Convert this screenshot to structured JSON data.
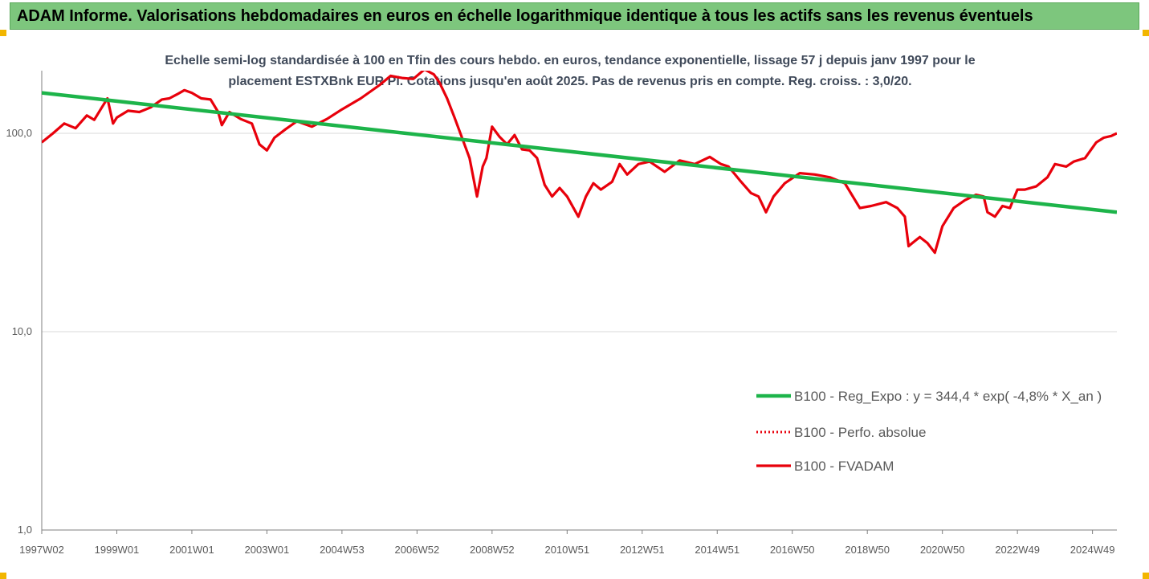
{
  "banner": {
    "title": "ADAM Informe. Valorisations hebdomadaires en euros en échelle logarithmique identique à tous les actifs sans les revenus éventuels"
  },
  "colors": {
    "banner_bg": "#7dc67d",
    "trend": "#1db44a",
    "series": "#e8000b",
    "corner": "#f2b600",
    "axis_text": "#5a5a5a",
    "grid": "#d9d9d9"
  },
  "chart_data": {
    "type": "line",
    "title_line1": "Echelle semi-log standardisée à 100 en Tfin des cours hebdo. en euros, tendance exponentielle, lissage 57 j depuis janv 1997 pour le",
    "title_line2": "placement ESTXBnk EUR Pi. Cotations jusqu'en août 2025. Pas de revenus pris en compte. Reg. croiss. : 3,0/20.",
    "y_scale": "log",
    "ylim": [
      1,
      200
    ],
    "y_ticks": [
      {
        "value": 1,
        "label": "1,0"
      },
      {
        "value": 10,
        "label": "10,0"
      },
      {
        "value": 100,
        "label": "100,0"
      }
    ],
    "xlim": [
      1997.0,
      2025.65
    ],
    "x_ticks": [
      {
        "value": 1997.0,
        "label": "1997W02"
      },
      {
        "value": 1999.0,
        "label": "1999W01"
      },
      {
        "value": 2001.0,
        "label": "2001W01"
      },
      {
        "value": 2003.0,
        "label": "2003W01"
      },
      {
        "value": 2005.0,
        "label": "2004W53"
      },
      {
        "value": 2007.0,
        "label": "2006W52"
      },
      {
        "value": 2009.0,
        "label": "2008W52"
      },
      {
        "value": 2011.0,
        "label": "2010W51"
      },
      {
        "value": 2013.0,
        "label": "2012W51"
      },
      {
        "value": 2015.0,
        "label": "2014W51"
      },
      {
        "value": 2017.0,
        "label": "2016W50"
      },
      {
        "value": 2019.0,
        "label": "2018W50"
      },
      {
        "value": 2021.0,
        "label": "2020W50"
      },
      {
        "value": 2023.0,
        "label": "2022W49"
      },
      {
        "value": 2025.0,
        "label": "2024W49"
      }
    ],
    "legend_position": "right-bottom",
    "series": [
      {
        "name": "B100 - Reg_Expo : y = 344,4 * exp( -4,8% *  X_an )",
        "style": "solid-thick",
        "color": "#1db44a",
        "x": [
          1997.0,
          2025.65
        ],
        "y": [
          160,
          40
        ]
      },
      {
        "name": "B100 - Perfo. absolue",
        "style": "dotted",
        "color": "#e8000b",
        "x": [],
        "y": []
      },
      {
        "name": "B100 - FVADAM",
        "style": "solid",
        "color": "#e8000b",
        "x": [
          1997.0,
          1997.3,
          1997.6,
          1997.9,
          1998.2,
          1998.4,
          1998.6,
          1998.75,
          1998.9,
          1999.0,
          1999.3,
          1999.6,
          1999.9,
          2000.2,
          2000.4,
          2000.6,
          2000.8,
          2001.0,
          2001.25,
          2001.5,
          2001.7,
          2001.8,
          2002.0,
          2002.3,
          2002.6,
          2002.8,
          2003.0,
          2003.2,
          2003.5,
          2003.8,
          2004.2,
          2004.6,
          2005.0,
          2005.5,
          2006.0,
          2006.3,
          2006.6,
          2006.9,
          2007.2,
          2007.45,
          2007.6,
          2007.8,
          2008.0,
          2008.2,
          2008.4,
          2008.6,
          2008.75,
          2008.85,
          2009.0,
          2009.2,
          2009.4,
          2009.6,
          2009.8,
          2010.0,
          2010.2,
          2010.4,
          2010.6,
          2010.8,
          2011.0,
          2011.3,
          2011.5,
          2011.7,
          2011.9,
          2012.2,
          2012.4,
          2012.6,
          2012.9,
          2013.2,
          2013.6,
          2014.0,
          2014.4,
          2014.8,
          2015.1,
          2015.3,
          2015.6,
          2015.9,
          2016.1,
          2016.3,
          2016.5,
          2016.8,
          2017.2,
          2017.6,
          2018.0,
          2018.4,
          2018.8,
          2019.1,
          2019.5,
          2019.8,
          2020.0,
          2020.1,
          2020.2,
          2020.4,
          2020.6,
          2020.8,
          2021.0,
          2021.3,
          2021.6,
          2021.9,
          2022.1,
          2022.2,
          2022.4,
          2022.6,
          2022.8,
          2023.0,
          2023.2,
          2023.5,
          2023.8,
          2024.0,
          2024.3,
          2024.5,
          2024.8,
          2025.1,
          2025.3,
          2025.5,
          2025.65
        ],
        "y": [
          90,
          100,
          112,
          106,
          123,
          117,
          135,
          150,
          112,
          120,
          130,
          128,
          135,
          148,
          150,
          157,
          165,
          160,
          150,
          148,
          128,
          110,
          128,
          118,
          112,
          88,
          82,
          95,
          105,
          115,
          108,
          118,
          132,
          150,
          175,
          195,
          190,
          188,
          210,
          198,
          180,
          150,
          120,
          95,
          75,
          48,
          68,
          75,
          108,
          96,
          88,
          98,
          83,
          82,
          75,
          55,
          48,
          53,
          48,
          38,
          48,
          56,
          52,
          57,
          70,
          62,
          70,
          72,
          64,
          73,
          70,
          76,
          70,
          68,
          58,
          50,
          48,
          40,
          48,
          56,
          63,
          62,
          60,
          56,
          42,
          43,
          45,
          42,
          38,
          27,
          28,
          30,
          28,
          25,
          34,
          42,
          46,
          49,
          48,
          40,
          38,
          43,
          42,
          52,
          52,
          54,
          60,
          70,
          68,
          72,
          75,
          90,
          95,
          97,
          100
        ]
      }
    ]
  }
}
